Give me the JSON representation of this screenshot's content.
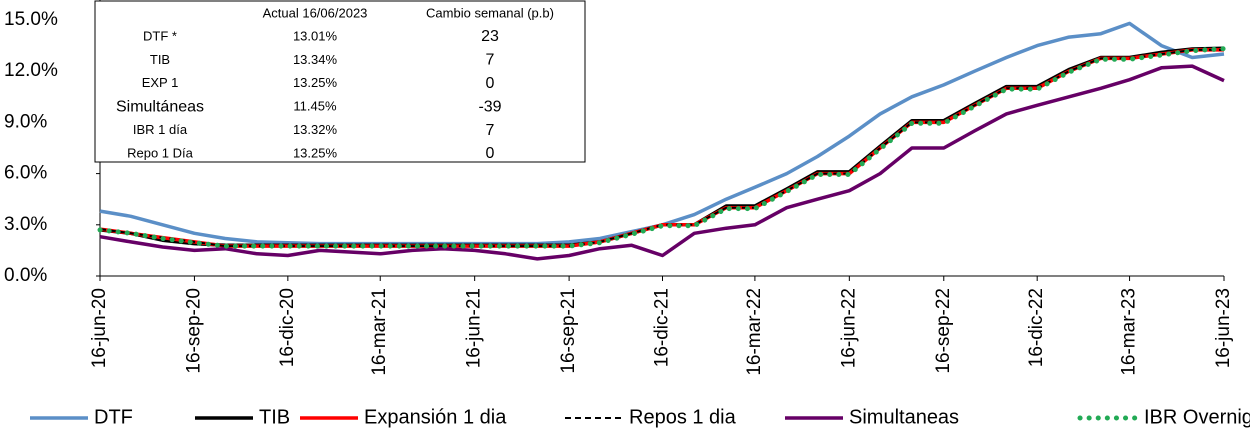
{
  "chart_data": {
    "type": "line",
    "x": [
      "2020-06-16",
      "2020-07-16",
      "2020-08-16",
      "2020-09-16",
      "2020-10-16",
      "2020-11-16",
      "2020-12-16",
      "2021-01-16",
      "2021-02-16",
      "2021-03-16",
      "2021-04-16",
      "2021-05-16",
      "2021-06-16",
      "2021-07-16",
      "2021-08-16",
      "2021-09-16",
      "2021-10-16",
      "2021-11-16",
      "2021-12-16",
      "2022-01-16",
      "2022-02-16",
      "2022-03-16",
      "2022-04-16",
      "2022-05-16",
      "2022-06-16",
      "2022-07-16",
      "2022-08-16",
      "2022-09-16",
      "2022-10-16",
      "2022-11-16",
      "2022-12-16",
      "2023-01-16",
      "2023-02-16",
      "2023-03-16",
      "2023-04-16",
      "2023-05-16",
      "2023-06-16"
    ],
    "series": [
      {
        "name": "DTF",
        "color": "#5b8fc7",
        "style": "solid",
        "values": [
          3.8,
          3.5,
          3.0,
          2.5,
          2.2,
          2.0,
          1.95,
          1.9,
          1.9,
          1.9,
          1.9,
          1.9,
          1.9,
          1.9,
          1.9,
          2.0,
          2.2,
          2.6,
          3.0,
          3.6,
          4.5,
          5.2,
          6.0,
          7.0,
          8.2,
          9.5,
          10.5,
          11.2,
          12.0,
          12.8,
          13.5,
          14.0,
          14.2,
          14.8,
          13.5,
          12.8,
          13.01
        ]
      },
      {
        "name": "TIB",
        "color": "#000000",
        "style": "solid",
        "values": [
          2.7,
          2.5,
          2.1,
          1.9,
          1.8,
          1.8,
          1.8,
          1.8,
          1.8,
          1.8,
          1.8,
          1.8,
          1.8,
          1.8,
          1.8,
          1.8,
          2.0,
          2.5,
          3.0,
          3.0,
          4.1,
          4.1,
          5.1,
          6.1,
          6.1,
          7.6,
          9.1,
          9.1,
          10.1,
          11.1,
          11.1,
          12.1,
          12.8,
          12.8,
          13.1,
          13.3,
          13.34
        ]
      },
      {
        "name": "Expansión 1 dia",
        "color": "#ff0000",
        "style": "solid",
        "values": [
          2.75,
          2.5,
          2.25,
          2.0,
          1.75,
          1.75,
          1.75,
          1.75,
          1.75,
          1.75,
          1.75,
          1.75,
          1.75,
          1.75,
          1.75,
          1.75,
          2.0,
          2.5,
          3.0,
          3.0,
          4.0,
          4.0,
          5.0,
          6.0,
          6.0,
          7.5,
          9.0,
          9.0,
          10.0,
          11.0,
          11.0,
          12.0,
          12.75,
          12.75,
          13.0,
          13.25,
          13.25
        ]
      },
      {
        "name": "Repos 1 dia",
        "color": "#000000",
        "style": "dashed",
        "values": [
          2.75,
          2.5,
          2.25,
          2.0,
          1.75,
          1.75,
          1.75,
          1.75,
          1.75,
          1.75,
          1.75,
          1.75,
          1.75,
          1.75,
          1.75,
          1.75,
          2.0,
          2.5,
          3.0,
          3.0,
          4.0,
          4.0,
          5.0,
          6.0,
          6.0,
          7.5,
          9.0,
          9.0,
          10.0,
          11.0,
          11.0,
          12.0,
          12.75,
          12.75,
          13.0,
          13.25,
          13.25
        ]
      },
      {
        "name": "Simultaneas",
        "color": "#660066",
        "style": "solid",
        "values": [
          2.3,
          2.0,
          1.7,
          1.5,
          1.6,
          1.3,
          1.2,
          1.5,
          1.4,
          1.3,
          1.5,
          1.6,
          1.5,
          1.3,
          1.0,
          1.2,
          1.6,
          1.8,
          1.2,
          2.5,
          2.8,
          3.0,
          4.0,
          4.5,
          5.0,
          6.0,
          7.5,
          7.5,
          8.5,
          9.5,
          10.0,
          10.5,
          11.0,
          11.5,
          12.2,
          12.3,
          11.45
        ]
      },
      {
        "name": "IBR Overnight",
        "color": "#22aa55",
        "style": "dotted",
        "values": [
          2.7,
          2.5,
          2.2,
          1.95,
          1.75,
          1.75,
          1.75,
          1.75,
          1.75,
          1.75,
          1.75,
          1.75,
          1.75,
          1.75,
          1.75,
          1.75,
          1.95,
          2.45,
          2.95,
          2.95,
          3.95,
          3.95,
          4.95,
          5.95,
          5.95,
          7.45,
          8.95,
          8.95,
          9.95,
          10.95,
          10.95,
          11.95,
          12.7,
          12.7,
          12.95,
          13.2,
          13.32
        ]
      }
    ],
    "xlim": [
      "2020-06-16",
      "2023-06-16"
    ],
    "xticks": [
      {
        "value": "2020-06-16",
        "label": "16-jun-20"
      },
      {
        "value": "2020-09-16",
        "label": "16-sep-20"
      },
      {
        "value": "2020-12-16",
        "label": "16-dic-20"
      },
      {
        "value": "2021-03-16",
        "label": "16-mar-21"
      },
      {
        "value": "2021-06-16",
        "label": "16-jun-21"
      },
      {
        "value": "2021-09-16",
        "label": "16-sep-21"
      },
      {
        "value": "2021-12-16",
        "label": "16-dic-21"
      },
      {
        "value": "2022-03-16",
        "label": "16-mar-22"
      },
      {
        "value": "2022-06-16",
        "label": "16-jun-22"
      },
      {
        "value": "2022-09-16",
        "label": "16-sep-22"
      },
      {
        "value": "2022-12-16",
        "label": "16-dic-22"
      },
      {
        "value": "2023-03-16",
        "label": "16-mar-23"
      },
      {
        "value": "2023-06-16",
        "label": "16-jun-23"
      }
    ],
    "ylim": [
      0,
      15
    ],
    "yticks": [
      {
        "value": 0,
        "label": "0.0%"
      },
      {
        "value": 3,
        "label": "3.0%"
      },
      {
        "value": 6,
        "label": "6.0%"
      },
      {
        "value": 9,
        "label": "9.0%"
      },
      {
        "value": 12,
        "label": "12.0%"
      },
      {
        "value": 15,
        "label": "15.0%"
      }
    ],
    "legend": "bottom",
    "table": {
      "columns": [
        "Actual 16/06/2023",
        "Cambio semanal (p.b)"
      ],
      "rows": [
        {
          "label": "DTF *",
          "values": [
            "13.01%",
            "23"
          ]
        },
        {
          "label": "TIB",
          "values": [
            "13.34%",
            "7"
          ]
        },
        {
          "label": "EXP 1",
          "values": [
            "13.25%",
            "0"
          ]
        },
        {
          "label": "Simultáneas",
          "values": [
            "11.45%",
            "-39"
          ]
        },
        {
          "label": "IBR 1 día",
          "values": [
            "13.32%",
            "7"
          ]
        },
        {
          "label": "Repo 1 Día",
          "values": [
            "13.25%",
            "0"
          ]
        }
      ]
    }
  }
}
